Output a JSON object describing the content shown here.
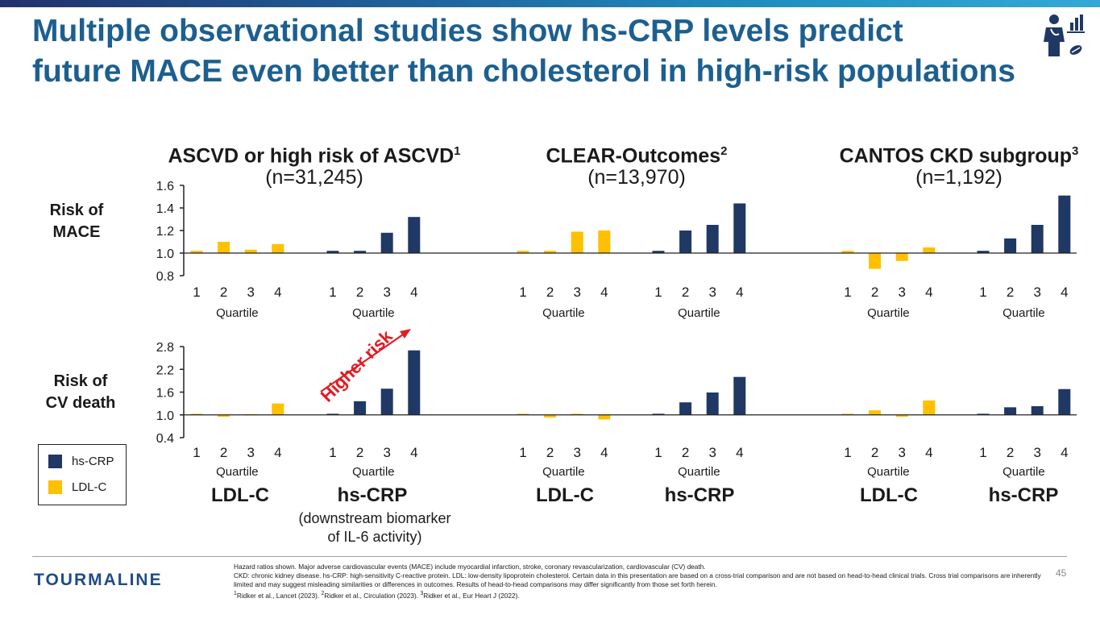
{
  "header": {
    "title_line1": "Multiple observational studies show hs-CRP levels predict",
    "title_line2": "future MACE even better than cholesterol in high-risk populations"
  },
  "groups": [
    {
      "name": "ASCVD or high risk of ASCVD",
      "ref": "1",
      "n": "(n=31,245)"
    },
    {
      "name": "CLEAR-Outcomes",
      "ref": "2",
      "n": "(n=13,970)"
    },
    {
      "name": "CANTOS CKD subgroup",
      "ref": "3",
      "n": "(n=1,192)"
    }
  ],
  "row_labels": {
    "mace_line1": "Risk of",
    "mace_line2": "MACE",
    "cv_line1": "Risk of",
    "cv_line2": "CV death"
  },
  "bottom_labels": {
    "ldl": "LDL-C",
    "hscrp": "hs-CRP",
    "sub_line1": "(downstream biomarker",
    "sub_line2": "of IL-6 activity)"
  },
  "annotation": "Higher risk",
  "legend": {
    "hscrp": "hs-CRP",
    "ldl": "LDL-C"
  },
  "colors": {
    "hscrp": "#1f3864",
    "ldl": "#ffc000",
    "title": "#1c5f90",
    "arrow": "#e31b23"
  },
  "chart_data": [
    {
      "type": "bar",
      "title": "Risk of MACE",
      "ylim": [
        0.8,
        1.6
      ],
      "yticks": [
        "0.8",
        "1.0",
        "1.2",
        "1.4",
        "1.6"
      ],
      "baseline": 1.0,
      "xlabel": "Quartile",
      "categories": [
        "1",
        "2",
        "3",
        "4"
      ],
      "series": [
        {
          "study": "ASCVD or high risk of ASCVD",
          "name": "LDL-C",
          "values": [
            1.02,
            1.1,
            1.03,
            1.08
          ]
        },
        {
          "study": "ASCVD or high risk of ASCVD",
          "name": "hs-CRP",
          "values": [
            1.02,
            1.02,
            1.18,
            1.32
          ]
        },
        {
          "study": "CLEAR-Outcomes",
          "name": "LDL-C",
          "values": [
            1.02,
            1.02,
            1.19,
            1.2
          ]
        },
        {
          "study": "CLEAR-Outcomes",
          "name": "hs-CRP",
          "values": [
            1.02,
            1.2,
            1.25,
            1.44
          ]
        },
        {
          "study": "CANTOS CKD subgroup",
          "name": "LDL-C",
          "values": [
            1.02,
            0.86,
            0.93,
            1.05
          ]
        },
        {
          "study": "CANTOS CKD subgroup",
          "name": "hs-CRP",
          "values": [
            1.02,
            1.13,
            1.25,
            1.51
          ]
        }
      ]
    },
    {
      "type": "bar",
      "title": "Risk of CV death",
      "ylim": [
        0.4,
        2.8
      ],
      "yticks": [
        "0.4",
        "1.0",
        "1.6",
        "2.2",
        "2.8"
      ],
      "baseline": 1.0,
      "xlabel": "Quartile",
      "categories": [
        "1",
        "2",
        "3",
        "4"
      ],
      "series": [
        {
          "study": "ASCVD or high risk of ASCVD",
          "name": "LDL-C",
          "values": [
            1.03,
            0.95,
            1.02,
            1.3
          ]
        },
        {
          "study": "ASCVD or high risk of ASCVD",
          "name": "hs-CRP",
          "values": [
            1.03,
            1.36,
            1.69,
            2.7
          ]
        },
        {
          "study": "CLEAR-Outcomes",
          "name": "LDL-C",
          "values": [
            1.03,
            0.93,
            1.03,
            0.88
          ]
        },
        {
          "study": "CLEAR-Outcomes",
          "name": "hs-CRP",
          "values": [
            1.03,
            1.33,
            1.59,
            2.0
          ]
        },
        {
          "study": "CANTOS CKD subgroup",
          "name": "LDL-C",
          "values": [
            1.03,
            1.12,
            0.95,
            1.38
          ]
        },
        {
          "study": "CANTOS CKD subgroup",
          "name": "hs-CRP",
          "values": [
            1.03,
            1.2,
            1.23,
            1.68
          ]
        }
      ]
    }
  ],
  "footer": {
    "logo": "TOURMALINE",
    "note1": "Hazard ratios shown. Major adverse cardiovascular events (MACE) include myocardial infarction, stroke, coronary revascularization, cardiovascular (CV) death.",
    "note2": "CKD: chronic kidney disease. hs-CRP: high-sensitivity C-reactive protein. LDL: low-density lipoprotein cholesterol. Certain data in this presentation are based on a cross-trial comparison and are not based on head-to-head clinical trials. Cross trial comparisons are inherently limited and may suggest misleading similarities or differences in outcomes. Results of head-to-head comparisons may differ significantly from those set forth herein.",
    "ref1_sup": "1",
    "ref1": "Ridker et al., Lancet (2023). ",
    "ref2_sup": "2",
    "ref2": "Ridker et al., Circulation (2023). ",
    "ref3_sup": "3",
    "ref3": "Ridker et al., Eur Heart J (2022).",
    "page": "45"
  }
}
